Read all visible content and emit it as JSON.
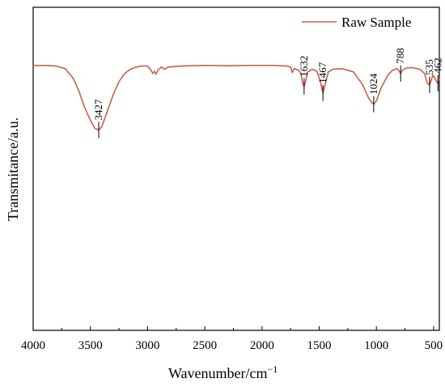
{
  "chart_data": {
    "type": "line",
    "title": "",
    "xlabel": "Wavenumber/cm",
    "xlabel_sup": "−1",
    "ylabel": "Transmitance/a.u.",
    "xlim": [
      4000,
      450
    ],
    "x_reversed": true,
    "ylim": [
      0,
      100
    ],
    "x_ticks": [
      "4000",
      "3500",
      "3000",
      "2500",
      "2000",
      "1500",
      "1000",
      "500"
    ],
    "x_tick_values": [
      4000,
      3500,
      3000,
      2500,
      2000,
      1500,
      1000,
      500
    ],
    "y_ticks_shown": false,
    "grid": false,
    "legend": {
      "position": "top-right",
      "entries": [
        "Raw Sample"
      ]
    },
    "series": [
      {
        "name": "Raw Sample",
        "color": "#c8604e",
        "points": [
          [
            4000,
            82
          ],
          [
            3900,
            82
          ],
          [
            3800,
            81.8
          ],
          [
            3720,
            81
          ],
          [
            3650,
            78
          ],
          [
            3600,
            74
          ],
          [
            3550,
            69
          ],
          [
            3500,
            65
          ],
          [
            3460,
            62.5
          ],
          [
            3427,
            62
          ],
          [
            3400,
            63
          ],
          [
            3350,
            68
          ],
          [
            3300,
            73
          ],
          [
            3250,
            77
          ],
          [
            3200,
            79.5
          ],
          [
            3150,
            80.8
          ],
          [
            3100,
            81.5
          ],
          [
            3050,
            81.8
          ],
          [
            3000,
            81.8
          ],
          [
            2970,
            80.5
          ],
          [
            2955,
            79.5
          ],
          [
            2940,
            80.2
          ],
          [
            2925,
            79.3
          ],
          [
            2910,
            80.5
          ],
          [
            2880,
            81.5
          ],
          [
            2850,
            80.8
          ],
          [
            2820,
            81.5
          ],
          [
            2700,
            81.8
          ],
          [
            2500,
            82
          ],
          [
            2300,
            81.9
          ],
          [
            2100,
            82
          ],
          [
            1900,
            82
          ],
          [
            1780,
            81.8
          ],
          [
            1750,
            81.5
          ],
          [
            1735,
            79.8
          ],
          [
            1720,
            81
          ],
          [
            1700,
            80.8
          ],
          [
            1680,
            80.5
          ],
          [
            1660,
            79.5
          ],
          [
            1645,
            76.5
          ],
          [
            1632,
            75.5
          ],
          [
            1620,
            77
          ],
          [
            1600,
            80
          ],
          [
            1560,
            80.8
          ],
          [
            1520,
            80.2
          ],
          [
            1490,
            77
          ],
          [
            1467,
            73.5
          ],
          [
            1445,
            76.5
          ],
          [
            1420,
            80
          ],
          [
            1380,
            80.8
          ],
          [
            1300,
            81
          ],
          [
            1200,
            80
          ],
          [
            1120,
            76
          ],
          [
            1070,
            72
          ],
          [
            1040,
            70.5
          ],
          [
            1024,
            70
          ],
          [
            1000,
            71
          ],
          [
            960,
            75
          ],
          [
            900,
            79
          ],
          [
            860,
            80.5
          ],
          [
            820,
            81
          ],
          [
            800,
            80.2
          ],
          [
            788,
            79.5
          ],
          [
            775,
            80.4
          ],
          [
            740,
            81.2
          ],
          [
            680,
            81.3
          ],
          [
            620,
            80.8
          ],
          [
            580,
            79.5
          ],
          [
            555,
            76.5
          ],
          [
            535,
            76
          ],
          [
            520,
            77.5
          ],
          [
            505,
            79
          ],
          [
            490,
            78.2
          ],
          [
            475,
            77
          ],
          [
            462,
            76.5
          ],
          [
            450,
            78
          ]
        ]
      }
    ],
    "annotations": [
      {
        "x": 3427,
        "label": "3427"
      },
      {
        "x": 1632,
        "label": "1632"
      },
      {
        "x": 1467,
        "label": "1467"
      },
      {
        "x": 1024,
        "label": "1024"
      },
      {
        "x": 788,
        "label": "788"
      },
      {
        "x": 535,
        "label": "535"
      },
      {
        "x": 462,
        "label": "462"
      }
    ]
  }
}
